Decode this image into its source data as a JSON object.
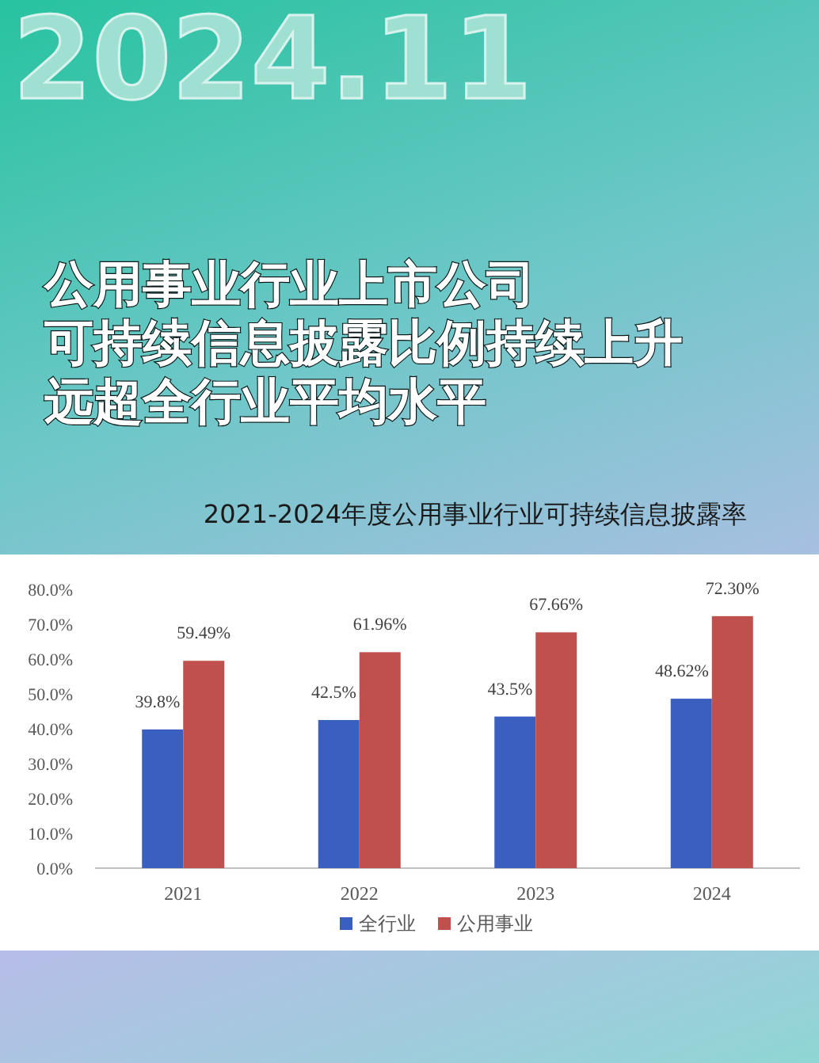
{
  "chart_data": {
    "type": "bar",
    "title": "公用事业行业上市公司",
    "subtitle": "2021-2024年度公用事业行业可持续信息披露率",
    "annotations": [
      "2024.11",
      "可持续信息披露比例持续上升",
      "远超全行业平均水平"
    ],
    "categories": [
      "2021",
      "2022",
      "2023",
      "2024"
    ],
    "series": [
      {
        "name": "全行业",
        "color": "#3b5fc0",
        "values": [
          39.8,
          42.5,
          43.5,
          48.62
        ],
        "value_labels": [
          "39.8%",
          "42.5%",
          "43.5%",
          "48.62%"
        ]
      },
      {
        "name": "公用事业",
        "color": "#c0504d",
        "values": [
          59.49,
          61.96,
          67.66,
          72.3
        ],
        "value_labels": [
          "59.49%",
          "61.96%",
          "67.66%",
          "72.30%"
        ]
      }
    ],
    "ylim": [
      0,
      80
    ],
    "yticks": [
      {
        "value": 0,
        "label": "0.0%"
      },
      {
        "value": 10,
        "label": "10.0%"
      },
      {
        "value": 20,
        "label": "20.0%"
      },
      {
        "value": 30,
        "label": "30.0%"
      },
      {
        "value": 40,
        "label": "40.0%"
      },
      {
        "value": 50,
        "label": "50.0%"
      },
      {
        "value": 60,
        "label": "60.0%"
      },
      {
        "value": 70,
        "label": "70.0%"
      },
      {
        "value": 80,
        "label": "80.0%"
      }
    ],
    "legend": "bottom"
  }
}
